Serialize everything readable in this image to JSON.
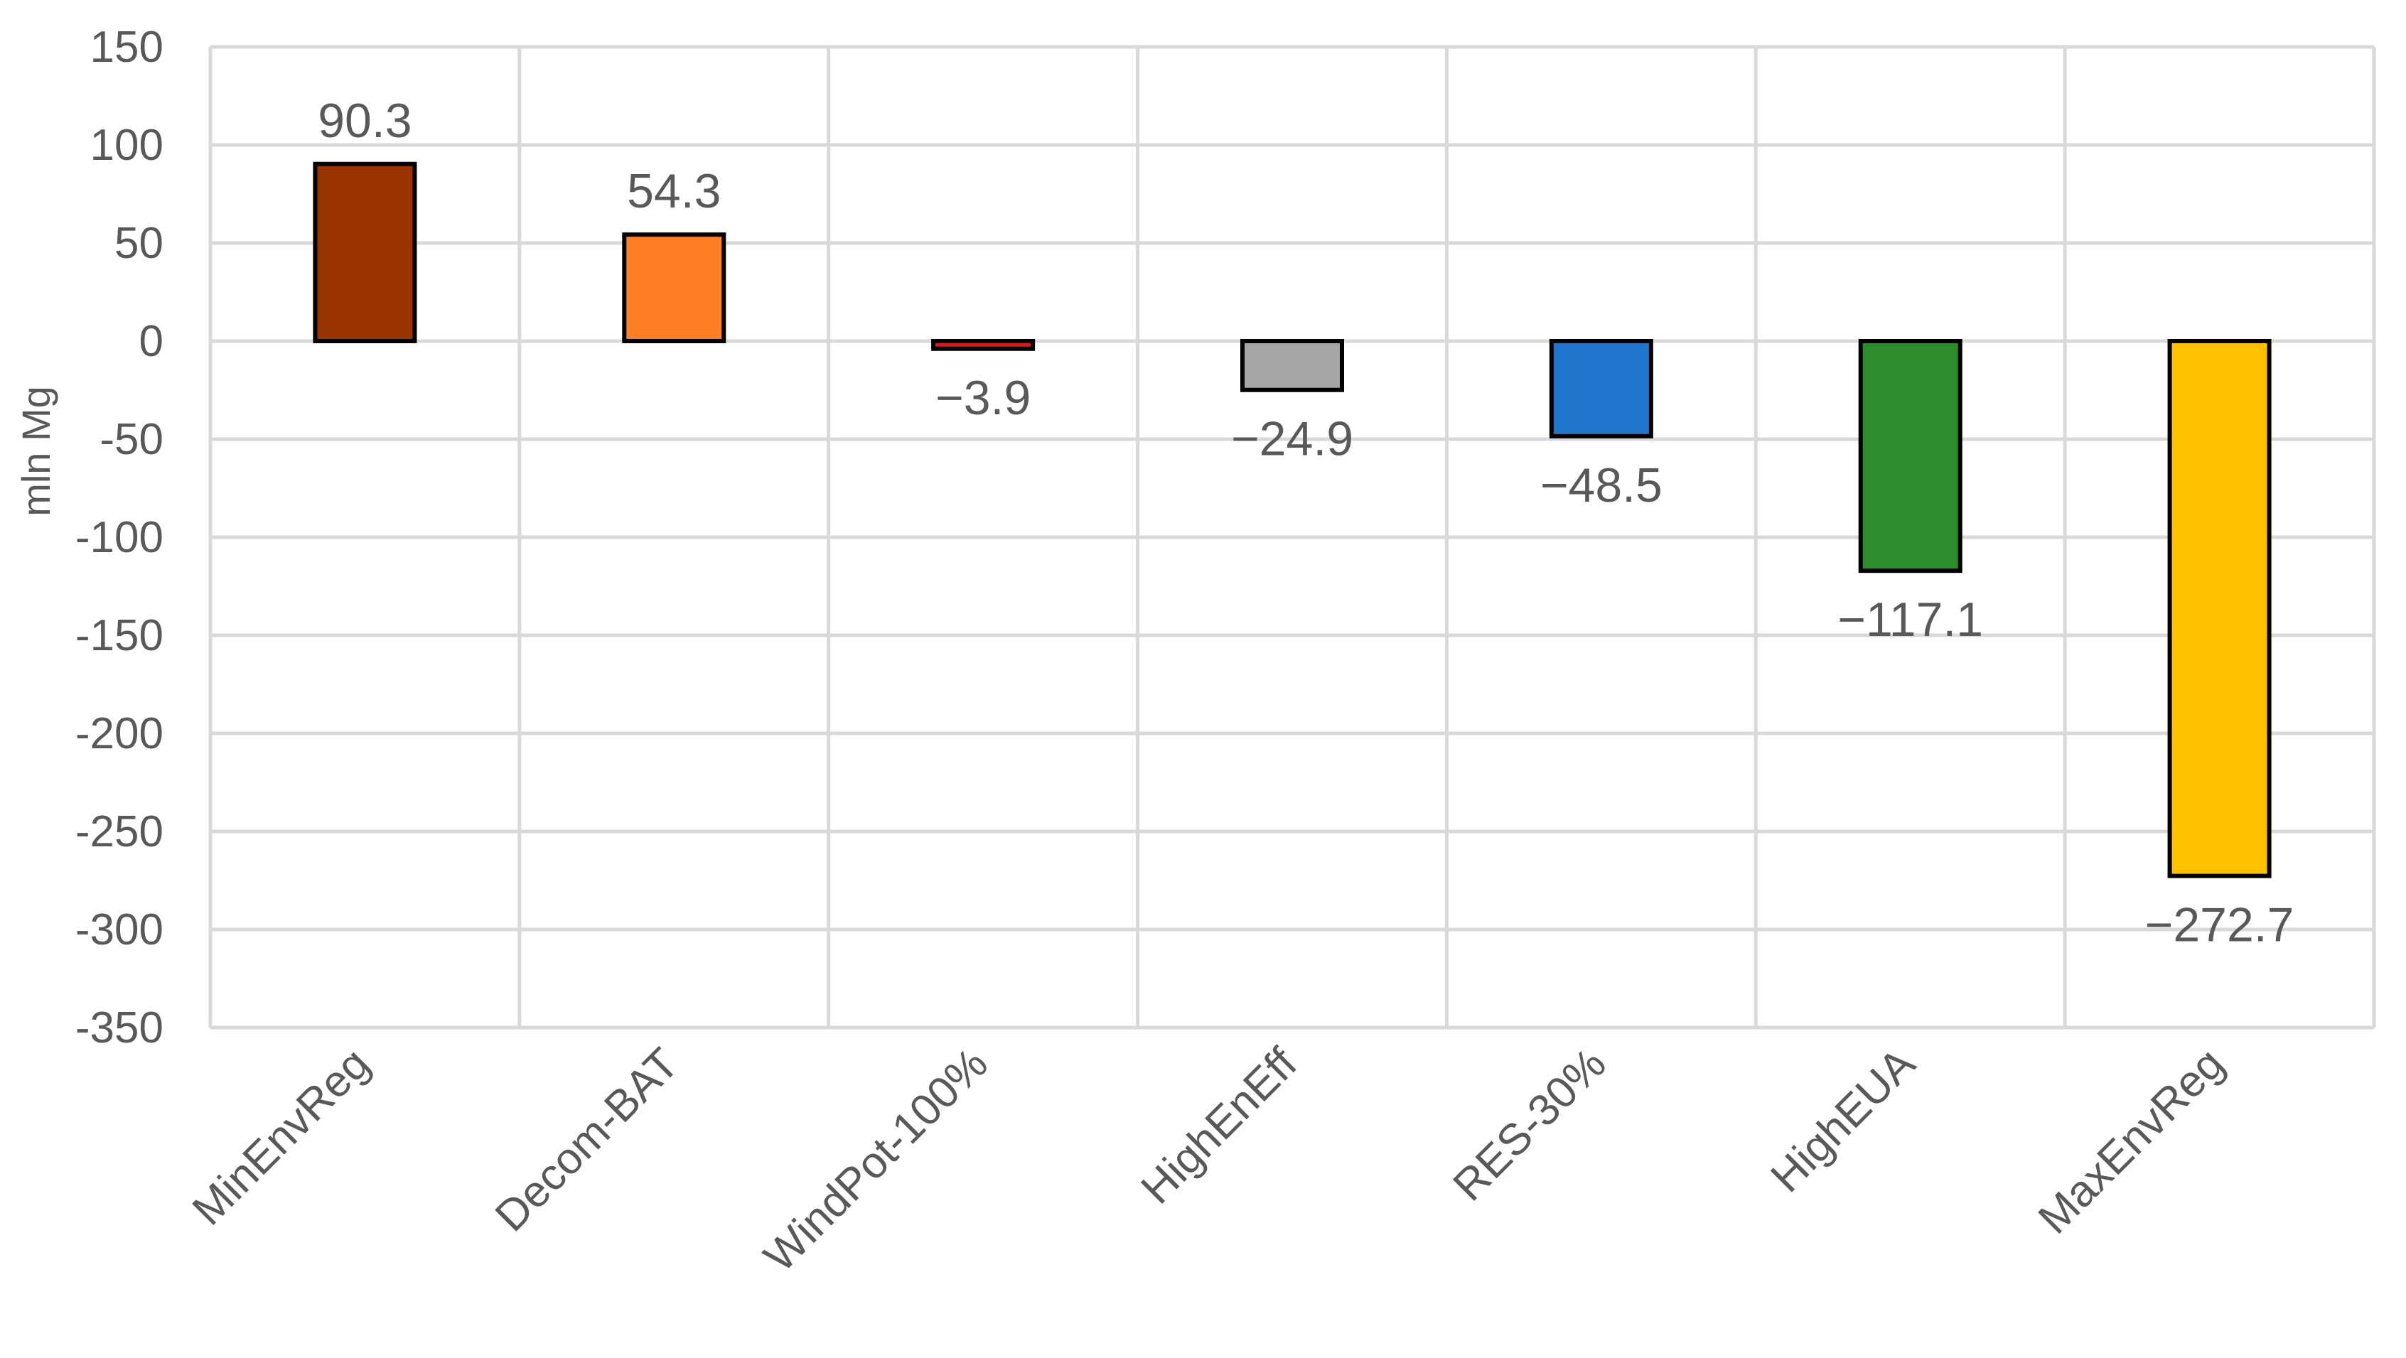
{
  "chart_data": {
    "type": "bar",
    "title": "",
    "xlabel": "",
    "ylabel": "mln Mg",
    "ylim": [
      -350,
      150
    ],
    "ytick_step": 50,
    "yticks": [
      "150",
      "100",
      "50",
      "0",
      "-50",
      "-100",
      "-150",
      "-200",
      "-250",
      "-300",
      "-350"
    ],
    "grid": true,
    "legend": "none",
    "categories": [
      "MinEnvReg",
      "Decom-BAT",
      "WindPot-100%",
      "HighEnEff",
      "RES-30%",
      "HighEUA",
      "MaxEnvReg"
    ],
    "values": [
      90.3,
      54.3,
      -3.9,
      -24.9,
      -48.5,
      -117.1,
      -272.7
    ],
    "value_labels": [
      "90.3",
      "54.3",
      "−3.9",
      "−24.9",
      "−48.5",
      "−117.1",
      "−272.7"
    ],
    "colors": [
      "#993300",
      "#FF7F27",
      "#E4161C",
      "#A6A6A6",
      "#1F75CC",
      "#2E8B2E",
      "#FFC000"
    ],
    "grid_color": "#D9D9D9",
    "bar_outline_color": "#000000"
  }
}
